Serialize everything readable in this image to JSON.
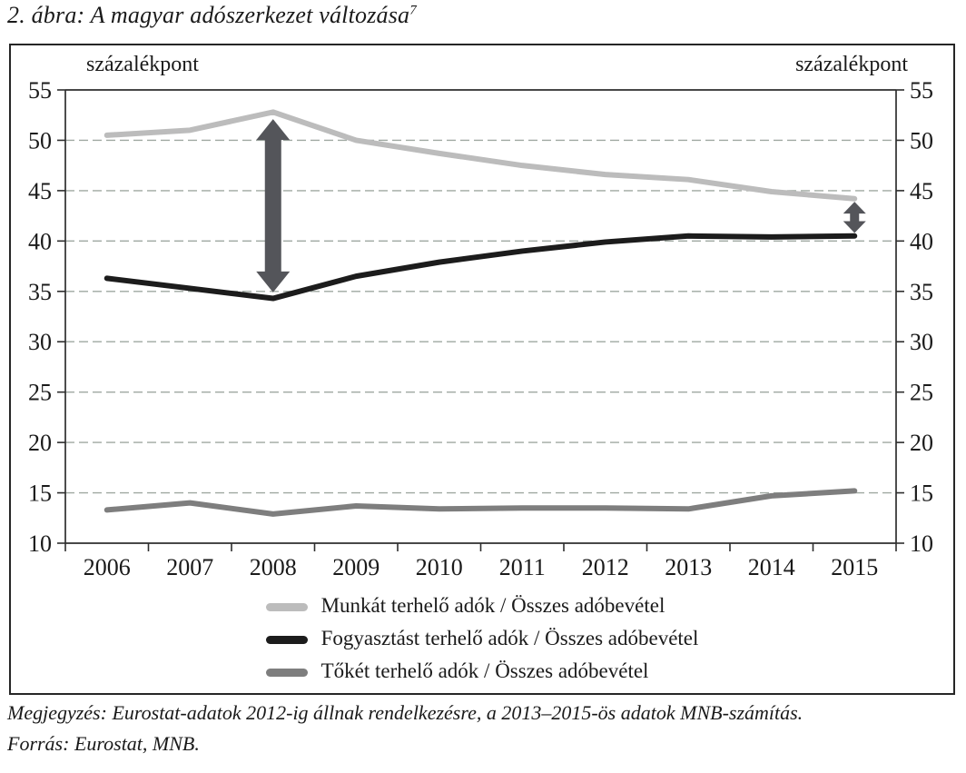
{
  "figure": {
    "title": "2. ábra: A magyar adószerkezet változása",
    "title_superscript": "7"
  },
  "axis_units": {
    "left": "százalékpont",
    "right": "százalékpont"
  },
  "notes": {
    "megjegyzes": "Megjegyzés: Eurostat-adatok 2012-ig állnak rendelkezésre, a 2013–2015-ös adatok MNB-számítás.",
    "forras": "Forrás: Eurostat, MNB."
  },
  "colors": {
    "text": "#1a1a1a",
    "axis": "#2e2e2e",
    "grid": "#9fa8a1",
    "arrow": "#54555a",
    "frame": "#262626"
  },
  "chart_data": {
    "type": "line",
    "x": [
      2006,
      2007,
      2008,
      2009,
      2010,
      2011,
      2012,
      2013,
      2014,
      2015
    ],
    "series": [
      {
        "id": "munkat",
        "name": "Munkát terhelő adók / Összes adóbevétel",
        "color": "#bcbcbc",
        "values": [
          50.5,
          51.0,
          52.8,
          50.0,
          48.7,
          47.5,
          46.6,
          46.1,
          44.9,
          44.2
        ]
      },
      {
        "id": "fogyasztast",
        "name": "Fogyasztást terhelő adók / Összes adóbevétel",
        "color": "#1c1c1c",
        "values": [
          36.3,
          35.3,
          34.3,
          36.5,
          37.9,
          39.0,
          39.9,
          40.5,
          40.4,
          40.5
        ]
      },
      {
        "id": "toket",
        "name": "Tőkét terhelő adók / Összes adóbevétel",
        "color": "#7e7e7e",
        "values": [
          13.3,
          14.0,
          12.9,
          13.7,
          13.4,
          13.5,
          13.5,
          13.4,
          14.7,
          15.2
        ]
      }
    ],
    "ylim": [
      10,
      55
    ],
    "ytick_step": 5,
    "grid": "horizontal-dashed",
    "legend_position": "bottom",
    "annotations": [
      {
        "type": "double-arrow",
        "x": 2008,
        "y_from": 34.9,
        "y_to": 52.1,
        "size": "large"
      },
      {
        "type": "double-arrow",
        "x": 2015,
        "y_from": 40.8,
        "y_to": 43.9,
        "size": "small"
      }
    ]
  }
}
